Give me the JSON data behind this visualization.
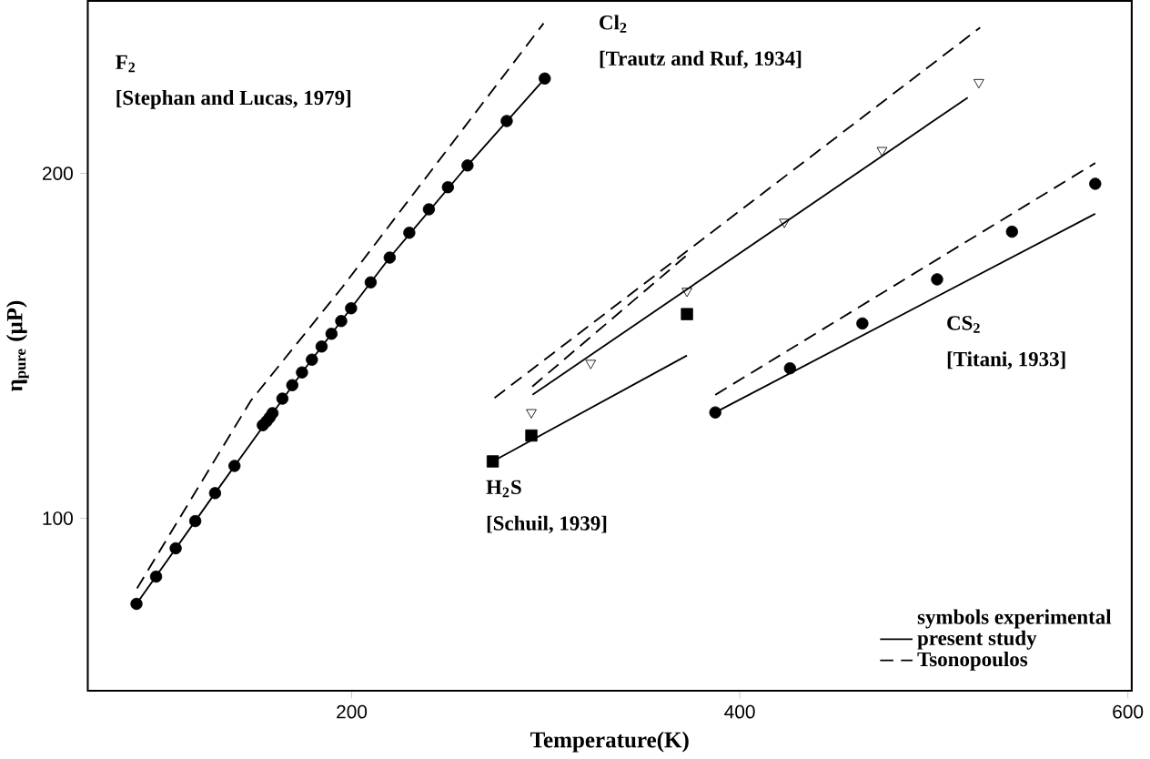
{
  "chart_data": {
    "type": "line",
    "xlabel": "Temperature(K)",
    "ylabel": "η$_{pure}$ (μP)",
    "xlim": [
      64,
      602
    ],
    "ylim": [
      50,
      250
    ],
    "xticks": [
      200,
      400,
      600
    ],
    "yticks": [
      100,
      200
    ],
    "legend": "bottom right",
    "annotations": [
      "symbols  experimental",
      "F$_{2}$",
      "[Stephan and Lucas, 1979]",
      "Cl$_{2}$",
      "[Trautz and Ruf, 1934]",
      "H$_{2}$S",
      "[Schuil, 1939]",
      "CS$_{2}$",
      "[Titani, 1933]"
    ],
    "series": [
      {
        "name": "present study",
        "color": "#000000",
        "line_style": "solid",
        "x": [
          89.1,
          129.6,
          174.4,
          219.6,
          259.7,
          299.5
        ],
        "values": [
          75.2,
          107.3,
          142.3,
          175.6,
          202.3,
          227.5
        ]
      },
      {
        "name": "Tsonopoulos",
        "color": "#000000",
        "line_style": "dashed",
        "x": [
          89.4,
          147.9,
          195.3,
          298.9
        ],
        "values": [
          79.7,
          134,
          167.1,
          243.5
        ]
      },
      {
        "type": "scatter",
        "color": "#000000",
        "marker": "circle",
        "x": [
          89.1,
          99.2,
          109.3,
          119.4,
          129.6,
          139.6,
          154.2,
          156.1,
          157.7,
          159.2,
          164.3,
          169.4,
          174.4,
          179.5,
          184.5,
          189.6,
          194.6,
          199.7,
          209.8,
          219.6,
          229.7,
          239.8,
          249.6,
          259.7,
          279.9,
          299.5
        ],
        "values": [
          75.2,
          83.1,
          91.3,
          99.2,
          107.3,
          115.2,
          127.0,
          128.1,
          129.2,
          130.5,
          134.7,
          138.6,
          142.3,
          146.0,
          149.8,
          153.5,
          157.2,
          160.9,
          168.4,
          175.6,
          182.8,
          189.6,
          196.0,
          202.3,
          215.2,
          227.5
        ]
      },
      {
        "type": "line",
        "color": "#000000",
        "line_style": "solid",
        "x": [
          293.2,
          517.5
        ],
        "values": [
          135.8,
          222.0
        ]
      },
      {
        "type": "line",
        "color": "#000000",
        "line_style": "dashed",
        "x": [
          273.6,
          523.9
        ],
        "values": [
          134.9,
          242.3
        ]
      },
      {
        "type": "scatter",
        "color": "#000000",
        "marker": "triangle",
        "x": [
          292.6,
          323.2,
          372.8,
          423.0,
          473.3,
          523.2
        ],
        "values": [
          130.7,
          145.0,
          165.9,
          185.9,
          206.7,
          226.4
        ]
      },
      {
        "type": "line",
        "color": "#000000",
        "line_style": "solid",
        "x": [
          272.7,
          372.8
        ],
        "values": [
          116.5,
          147.2
        ]
      },
      {
        "type": "line",
        "color": "#000000",
        "line_style": "dashed",
        "x": [
          293.1,
          372.8
        ],
        "values": [
          138.2,
          176.3
        ]
      },
      {
        "type": "scatter",
        "color": "#000000",
        "marker": "square",
        "x": [
          272.7,
          292.6,
          372.8
        ],
        "values": [
          116.5,
          124.0,
          159.2
        ]
      },
      {
        "type": "line",
        "color": "#000000",
        "line_style": "solid",
        "x": [
          387.4,
          583.2
        ],
        "values": [
          130.7,
          188.3
        ]
      },
      {
        "type": "line",
        "color": "#000000",
        "line_style": "dashed",
        "x": [
          387.4,
          583.2
        ],
        "values": [
          135.8,
          203.0
        ]
      },
      {
        "type": "scatter",
        "color": "#000000",
        "marker": "circle",
        "x": [
          387.4,
          425.9,
          463.2,
          501.7,
          540.3,
          583.2
        ],
        "values": [
          130.7,
          143.5,
          156.5,
          169.3,
          183.1,
          197.0
        ]
      }
    ]
  }
}
